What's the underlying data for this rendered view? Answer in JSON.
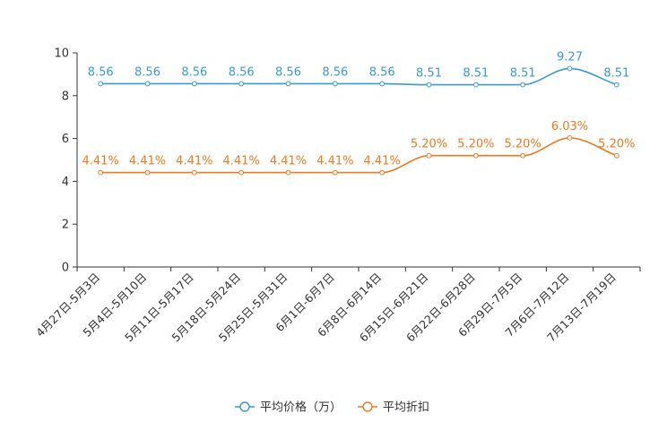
{
  "chart_data": {
    "type": "line",
    "title": "",
    "xlabel": "",
    "ylabel": "",
    "ylim": [
      0,
      10
    ],
    "yticks": [
      0,
      2,
      4,
      6,
      8,
      10
    ],
    "grid": false,
    "legend_position": "bottom-center",
    "categories": [
      "4月27日-5月3日",
      "5月4日-5月10日",
      "5月11日-5月17日",
      "5月18日-5月24日",
      "5月25日-5月31日",
      "6月1日-6月7日",
      "6月8日-6月14日",
      "6月15日-6月21日",
      "6月22日-6月28日",
      "6月29日-7月5日",
      "7月6日-7月12日",
      "7月13日-7月19日"
    ],
    "series": [
      {
        "name": "平均价格（万）",
        "color": "#3a9bd0",
        "values": [
          8.56,
          8.56,
          8.56,
          8.56,
          8.56,
          8.56,
          8.56,
          8.51,
          8.51,
          8.51,
          9.27,
          8.51
        ],
        "labels": [
          "8.56",
          "8.56",
          "8.56",
          "8.56",
          "8.56",
          "8.56",
          "8.56",
          "8.51",
          "8.51",
          "8.51",
          "9.27",
          "8.51"
        ]
      },
      {
        "name": "平均折扣",
        "color": "#f0791e",
        "values": [
          4.41,
          4.41,
          4.41,
          4.41,
          4.41,
          4.41,
          4.41,
          5.2,
          5.2,
          5.2,
          6.03,
          5.2
        ],
        "labels": [
          "4.41%",
          "4.41%",
          "4.41%",
          "4.41%",
          "4.41%",
          "4.41%",
          "4.41%",
          "5.20%",
          "5.20%",
          "5.20%",
          "6.03%",
          "5.20%"
        ]
      }
    ]
  }
}
